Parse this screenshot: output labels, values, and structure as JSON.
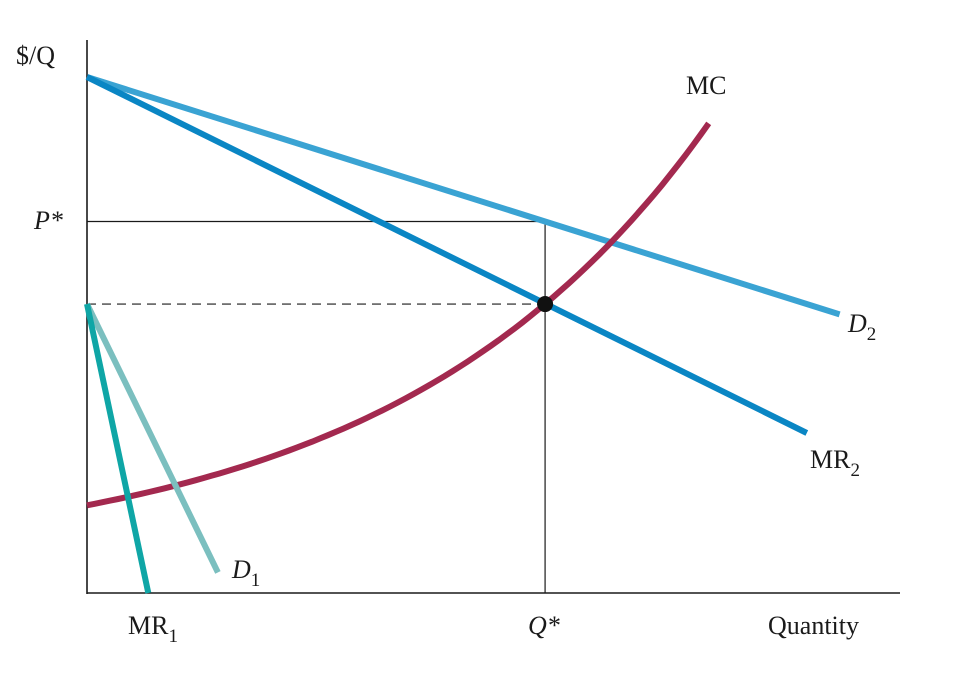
{
  "chart_data": {
    "type": "line",
    "title": "",
    "xlabel": "Quantity",
    "ylabel": "$/Q",
    "xlim": [
      0,
      100
    ],
    "ylim": [
      0,
      100
    ],
    "grid": false,
    "ticks": {
      "y_pstar": {
        "label": "P*",
        "value": 72
      },
      "x_qstar": {
        "label": "Q*",
        "value": 56
      },
      "y_mc_level": 56
    },
    "series": [
      {
        "name": "D",
        "sub": "2",
        "italic": true,
        "color": "#3aa3d3",
        "points": [
          [
            0,
            100
          ],
          [
            92,
            54
          ]
        ]
      },
      {
        "name": "MR",
        "sub": "2",
        "italic": false,
        "color": "#0a86c4",
        "points": [
          [
            0,
            100
          ],
          [
            88,
            31
          ]
        ]
      },
      {
        "name": "MC",
        "sub": "",
        "italic": false,
        "color": "#a3294f",
        "curve": {
          "form": "exp",
          "x0": 0,
          "y0": 17,
          "x_end": 76,
          "y_end": 91,
          "through": [
            56,
            56
          ]
        }
      },
      {
        "name": "D",
        "sub": "1",
        "italic": true,
        "color": "#7bbfbf",
        "points": [
          [
            0,
            56
          ],
          [
            16,
            4
          ]
        ]
      },
      {
        "name": "MR",
        "sub": "1",
        "italic": false,
        "color": "#0fa6a6",
        "points": [
          [
            0,
            56
          ],
          [
            7.5,
            0
          ]
        ]
      }
    ],
    "equilibrium": {
      "x": 56,
      "y": 56
    }
  }
}
